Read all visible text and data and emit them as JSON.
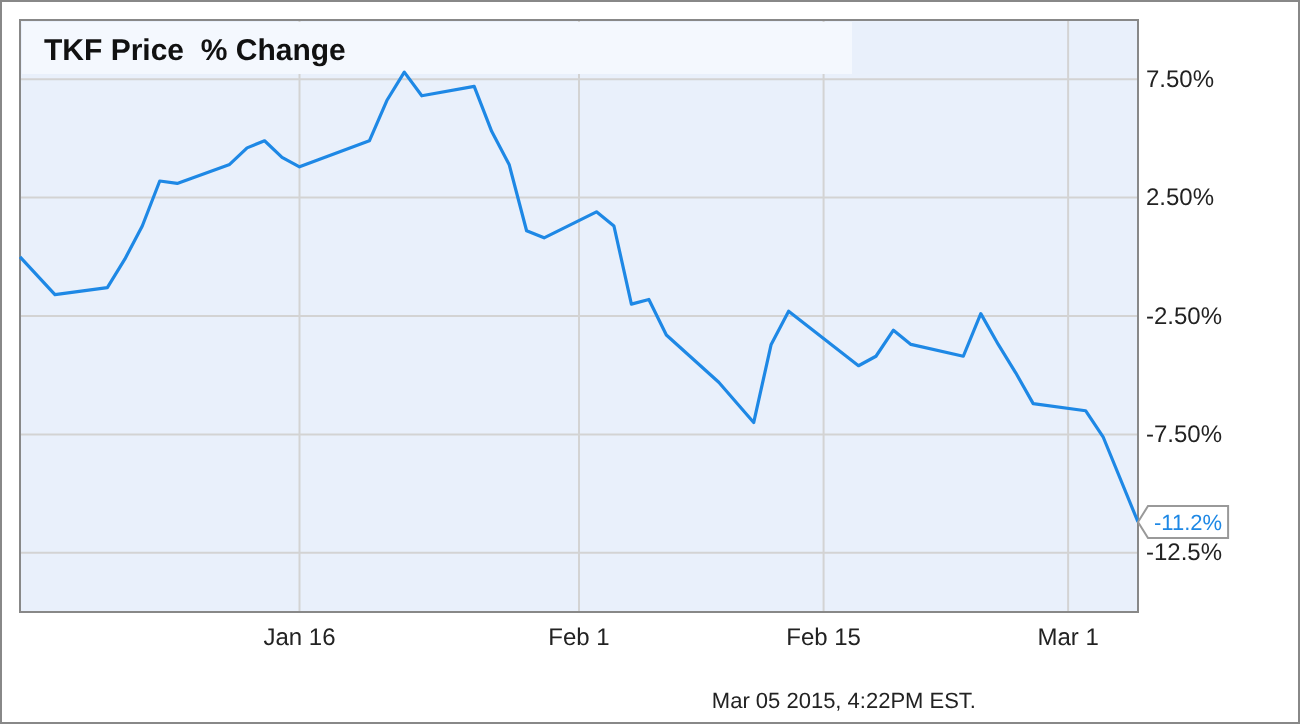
{
  "chart_data": {
    "type": "line",
    "title": "TKF Price  % Change",
    "x": [
      "2014-12-31",
      "2015-01-02",
      "2015-01-05",
      "2015-01-06",
      "2015-01-07",
      "2015-01-08",
      "2015-01-09",
      "2015-01-12",
      "2015-01-13",
      "2015-01-14",
      "2015-01-15",
      "2015-01-16",
      "2015-01-20",
      "2015-01-21",
      "2015-01-22",
      "2015-01-23",
      "2015-01-26",
      "2015-01-27",
      "2015-01-28",
      "2015-01-29",
      "2015-01-30",
      "2015-02-02",
      "2015-02-03",
      "2015-02-04",
      "2015-02-05",
      "2015-02-06",
      "2015-02-09",
      "2015-02-11",
      "2015-02-12",
      "2015-02-13",
      "2015-02-17",
      "2015-02-18",
      "2015-02-19",
      "2015-02-20",
      "2015-02-23",
      "2015-02-24",
      "2015-02-25",
      "2015-02-26",
      "2015-02-27",
      "2015-03-02",
      "2015-03-03",
      "2015-03-05"
    ],
    "series": [
      {
        "color": "#1e88e5",
        "values": [
          0,
          -1.6,
          -1.3,
          -0.1,
          1.3,
          3.2,
          3.1,
          3.9,
          4.6,
          4.9,
          4.2,
          3.8,
          4.9,
          6.6,
          7.8,
          6.8,
          7.2,
          5.3,
          3.9,
          1.1,
          0.8,
          1.9,
          1.3,
          -2.0,
          -1.8,
          -3.3,
          -5.3,
          -7.0,
          -3.7,
          -2.3,
          -4.6,
          -4.2,
          -3.1,
          -3.7,
          -4.2,
          -2.4,
          -3.7,
          -4.9,
          -6.2,
          -6.5,
          -7.6,
          -11.2
        ]
      }
    ],
    "xlim": [
      "2014-12-31",
      "2015-03-05"
    ],
    "xticks": [
      {
        "value": "2015-01-16",
        "label": "Jan 16"
      },
      {
        "value": "2015-02-01",
        "label": "Feb 1"
      },
      {
        "value": "2015-02-15",
        "label": "Feb 15"
      },
      {
        "value": "2015-03-01",
        "label": "Mar 1"
      }
    ],
    "ylim": [
      -15,
      10
    ],
    "yticks": [
      {
        "value": 7.5,
        "label": "7.50%"
      },
      {
        "value": 2.5,
        "label": "2.50%"
      },
      {
        "value": -2.5,
        "label": "-2.50%"
      },
      {
        "value": -7.5,
        "label": "-7.50%"
      },
      {
        "value": -12.5,
        "label": "-12.5%"
      }
    ],
    "grid": true,
    "marker": "none",
    "annotations": [
      {
        "text": "-11.2%",
        "x": "2015-03-05",
        "y": -11.2
      },
      "Mar 05 2015, 4:22PM EST."
    ]
  }
}
